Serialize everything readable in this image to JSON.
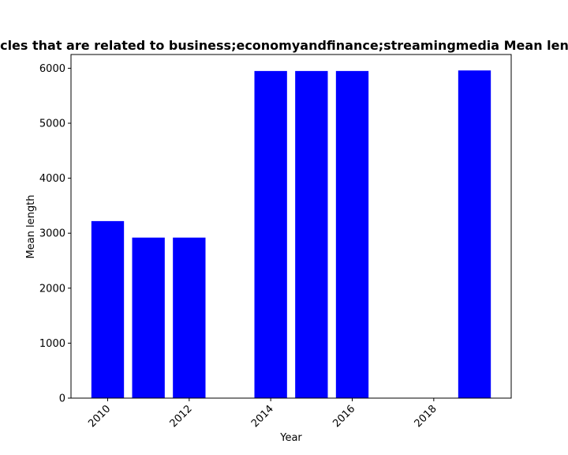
{
  "chart_data": {
    "type": "bar",
    "title": "Number of Wikipedia articles that are related to business;economyandfinance;streamingmedia Mean length in private organisation",
    "xlabel": "Year",
    "ylabel": "Mean length",
    "x": [
      2010,
      2011,
      2012,
      2014,
      2015,
      2016,
      2019
    ],
    "values": [
      3220,
      2920,
      2920,
      5950,
      5950,
      5950,
      5960
    ],
    "xticks": [
      2010,
      2012,
      2014,
      2016,
      2018
    ],
    "yticks": [
      0,
      1000,
      2000,
      3000,
      4000,
      5000,
      6000
    ],
    "xlim": [
      2009.1,
      2019.9
    ],
    "ylim": [
      0,
      6250
    ],
    "bar_width": 0.8,
    "bar_color": "#0000ff",
    "grid": false,
    "legend": "none"
  }
}
